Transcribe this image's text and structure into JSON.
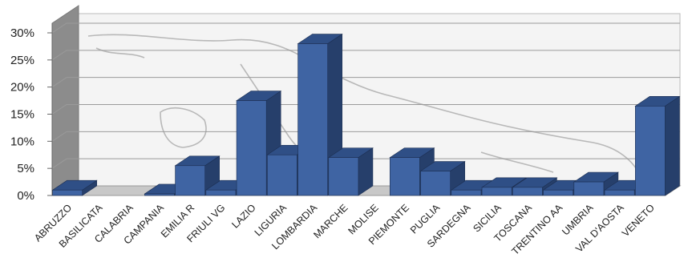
{
  "chart_data": {
    "type": "bar",
    "title": "",
    "xlabel": "",
    "ylabel": "",
    "categories": [
      "ABRUZZO",
      "BASILICATA",
      "CALABRIA",
      "CAMPANIA",
      "EMILIA R",
      "FRIULI VG",
      "LAZIO",
      "LIGURIA",
      "LOMBARDIA",
      "MARCHE",
      "MOLISE",
      "PIEMONTE",
      "PUGLIA",
      "SARDEGNA",
      "SICILIA",
      "TOSCANA",
      "TRENTINO AA",
      "UMBRIA",
      "VAL D'AOSTA",
      "VENETO"
    ],
    "values": [
      1,
      0,
      0,
      0.3,
      5.5,
      1,
      17.5,
      7.5,
      28,
      7,
      0,
      7,
      4.5,
      1,
      1.5,
      1.5,
      1,
      2.5,
      1,
      16.5
    ],
    "ylim": [
      0,
      30
    ],
    "yticks": [
      "0%",
      "5%",
      "10%",
      "15%",
      "20%",
      "25%",
      "30%"
    ],
    "grid": true,
    "style": "3d-column",
    "colors": {
      "bar_front": "#3f64a3",
      "bar_top": "#2f4f86",
      "bar_side": "#263f6b",
      "grid": "#9a9a9a",
      "back_wall": "#f4f4f4",
      "left_wall": "#8c8c8c",
      "floor": "#c8c8c8"
    }
  }
}
